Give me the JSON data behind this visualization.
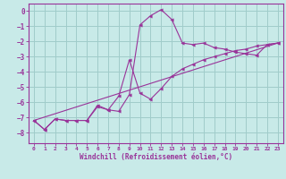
{
  "xlabel": "Windchill (Refroidissement éolien,°C)",
  "background_color": "#c8eae8",
  "grid_color": "#a0ccca",
  "line_color": "#993399",
  "xlim": [
    -0.5,
    23.5
  ],
  "ylim": [
    -8.7,
    0.5
  ],
  "xticks": [
    0,
    1,
    2,
    3,
    4,
    5,
    6,
    7,
    8,
    9,
    10,
    11,
    12,
    13,
    14,
    15,
    16,
    17,
    18,
    19,
    20,
    21,
    22,
    23
  ],
  "yticks": [
    0,
    -1,
    -2,
    -3,
    -4,
    -5,
    -6,
    -7,
    -8
  ],
  "curve1_x": [
    0,
    1,
    2,
    3,
    4,
    5,
    6,
    7,
    8,
    9,
    10,
    11,
    12,
    13,
    14,
    15,
    16,
    17,
    18,
    19,
    20,
    21,
    22,
    23
  ],
  "curve1_y": [
    -7.2,
    -7.8,
    -7.1,
    -7.2,
    -7.2,
    -7.2,
    -6.2,
    -6.5,
    -6.6,
    -5.5,
    -0.9,
    -0.3,
    0.1,
    -0.55,
    -2.1,
    -2.2,
    -2.1,
    -2.4,
    -2.5,
    -2.7,
    -2.8,
    -2.9,
    -2.2,
    -2.1
  ],
  "curve2_x": [
    0,
    1,
    2,
    3,
    4,
    5,
    6,
    7,
    8,
    9,
    10,
    11,
    12,
    13,
    14,
    15,
    16,
    17,
    18,
    19,
    20,
    21,
    22,
    23
  ],
  "curve2_y": [
    -7.2,
    -7.8,
    -7.1,
    -7.2,
    -7.2,
    -7.2,
    -6.3,
    -6.5,
    -5.6,
    -3.2,
    -5.4,
    -5.8,
    -5.1,
    -4.3,
    -3.8,
    -3.5,
    -3.2,
    -3.0,
    -2.8,
    -2.6,
    -2.5,
    -2.3,
    -2.2,
    -2.1
  ],
  "curve3_x": [
    0,
    23
  ],
  "curve3_y": [
    -7.2,
    -2.1
  ]
}
